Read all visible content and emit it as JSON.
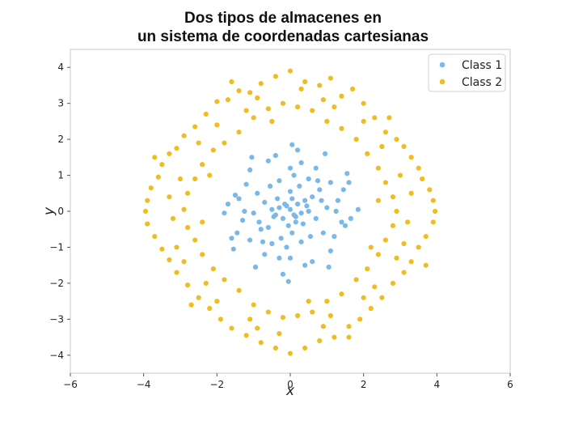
{
  "chart_data": {
    "type": "scatter",
    "title_lines": [
      "Dos tipos de almacenes en",
      "un sistema de coordenadas cartesianas"
    ],
    "xlabel": "x",
    "ylabel": "y",
    "xlim": [
      -6,
      6
    ],
    "ylim": [
      -4.5,
      4.5
    ],
    "xticks": [
      "−6",
      "−4",
      "−2",
      "0",
      "2",
      "4",
      "6"
    ],
    "yticks": [
      "−4",
      "−3",
      "−2",
      "−1",
      "0",
      "1",
      "2",
      "3",
      "4"
    ],
    "grid": false,
    "legend_position": "top-right",
    "series": [
      {
        "name": "Class 1",
        "color": "#7ab8e8",
        "points": [
          [
            0.0,
            0.05
          ],
          [
            0.1,
            -0.1
          ],
          [
            -0.1,
            0.15
          ],
          [
            0.2,
            0.2
          ],
          [
            -0.2,
            -0.2
          ],
          [
            0.15,
            -0.3
          ],
          [
            -0.3,
            0.1
          ],
          [
            0.3,
            -0.05
          ],
          [
            0.05,
            0.35
          ],
          [
            -0.05,
            -0.4
          ],
          [
            0.4,
            0.3
          ],
          [
            -0.4,
            -0.1
          ],
          [
            0.35,
            -0.35
          ],
          [
            -0.35,
            0.35
          ],
          [
            0.5,
            0.0
          ],
          [
            -0.5,
            0.05
          ],
          [
            0.0,
            0.55
          ],
          [
            0.05,
            -0.6
          ],
          [
            0.6,
            0.4
          ],
          [
            -0.6,
            -0.45
          ],
          [
            0.7,
            -0.2
          ],
          [
            -0.7,
            0.25
          ],
          [
            0.25,
            0.7
          ],
          [
            -0.25,
            -0.75
          ],
          [
            0.8,
            0.6
          ],
          [
            -0.8,
            -0.5
          ],
          [
            0.9,
            -0.6
          ],
          [
            -0.9,
            0.5
          ],
          [
            0.5,
            0.9
          ],
          [
            -0.5,
            -0.9
          ],
          [
            1.0,
            0.1
          ],
          [
            -1.0,
            -0.05
          ],
          [
            0.1,
            1.0
          ],
          [
            -0.1,
            -1.0
          ],
          [
            1.1,
            0.8
          ],
          [
            -1.1,
            -0.8
          ],
          [
            1.2,
            -0.7
          ],
          [
            -1.2,
            0.75
          ],
          [
            0.7,
            1.2
          ],
          [
            -0.7,
            -1.2
          ],
          [
            1.3,
            0.3
          ],
          [
            -1.3,
            -0.25
          ],
          [
            0.3,
            1.35
          ],
          [
            -0.3,
            -1.3
          ],
          [
            1.4,
            -0.3
          ],
          [
            -1.4,
            0.35
          ],
          [
            1.6,
            0.8
          ],
          [
            -1.6,
            -0.75
          ],
          [
            0.95,
            1.6
          ],
          [
            -0.95,
            -1.55
          ],
          [
            1.5,
            -0.4
          ],
          [
            -1.5,
            0.45
          ],
          [
            0.4,
            -1.5
          ],
          [
            -0.4,
            1.55
          ],
          [
            1.1,
            -1.1
          ],
          [
            -1.1,
            1.15
          ],
          [
            1.65,
            -0.2
          ],
          [
            -1.7,
            0.2
          ],
          [
            0.2,
            1.7
          ],
          [
            -0.2,
            -1.75
          ],
          [
            0.0,
            1.2
          ],
          [
            0.0,
            -1.3
          ],
          [
            1.25,
            0.0
          ],
          [
            -1.25,
            0.0
          ],
          [
            0.6,
            -1.4
          ],
          [
            -0.6,
            1.4
          ],
          [
            1.45,
            0.6
          ],
          [
            -1.45,
            -0.6
          ],
          [
            0.85,
            0.3
          ],
          [
            -0.85,
            -0.3
          ],
          [
            0.3,
            -0.85
          ],
          [
            -0.3,
            0.85
          ],
          [
            0.45,
            0.15
          ],
          [
            -0.45,
            -0.15
          ],
          [
            0.15,
            -0.15
          ],
          [
            -0.15,
            0.2
          ],
          [
            0.55,
            -0.7
          ],
          [
            -0.55,
            0.7
          ],
          [
            0.75,
            0.85
          ],
          [
            -0.75,
            -0.85
          ],
          [
            1.05,
            -1.55
          ],
          [
            -1.05,
            1.5
          ],
          [
            1.55,
            1.05
          ],
          [
            -1.55,
            -1.05
          ],
          [
            0.05,
            1.85
          ],
          [
            -0.05,
            -1.95
          ],
          [
            1.85,
            0.05
          ],
          [
            -1.8,
            -0.05
          ]
        ]
      },
      {
        "name": "Class 2",
        "color": "#efbd21",
        "points": [
          [
            0.0,
            3.9
          ],
          [
            0.4,
            3.6
          ],
          [
            -0.4,
            3.75
          ],
          [
            0.8,
            3.5
          ],
          [
            -0.8,
            3.55
          ],
          [
            1.1,
            3.7
          ],
          [
            -1.1,
            3.3
          ],
          [
            1.4,
            3.2
          ],
          [
            -1.4,
            3.35
          ],
          [
            1.7,
            3.4
          ],
          [
            -1.7,
            3.1
          ],
          [
            2.0,
            3.0
          ],
          [
            -2.0,
            3.05
          ],
          [
            2.3,
            2.6
          ],
          [
            -2.3,
            2.7
          ],
          [
            2.6,
            2.2
          ],
          [
            -2.6,
            2.35
          ],
          [
            2.9,
            2.0
          ],
          [
            -2.9,
            2.1
          ],
          [
            3.1,
            1.8
          ],
          [
            -3.1,
            1.75
          ],
          [
            3.3,
            1.5
          ],
          [
            -3.3,
            1.6
          ],
          [
            3.5,
            1.2
          ],
          [
            -3.5,
            1.3
          ],
          [
            3.6,
            0.9
          ],
          [
            -3.6,
            0.95
          ],
          [
            3.8,
            0.6
          ],
          [
            -3.8,
            0.65
          ],
          [
            3.9,
            0.3
          ],
          [
            -3.9,
            0.3
          ],
          [
            3.95,
            0.0
          ],
          [
            -3.95,
            0.0
          ],
          [
            3.9,
            -0.3
          ],
          [
            -3.9,
            -0.35
          ],
          [
            3.7,
            -0.7
          ],
          [
            -3.7,
            -0.7
          ],
          [
            3.5,
            -1.0
          ],
          [
            -3.5,
            -1.05
          ],
          [
            3.3,
            -1.4
          ],
          [
            -3.3,
            -1.35
          ],
          [
            3.1,
            -1.7
          ],
          [
            -3.1,
            -1.7
          ],
          [
            2.8,
            -2.0
          ],
          [
            -2.8,
            -2.05
          ],
          [
            2.5,
            -2.4
          ],
          [
            -2.5,
            -2.4
          ],
          [
            2.2,
            -2.7
          ],
          [
            -2.2,
            -2.7
          ],
          [
            1.9,
            -3.0
          ],
          [
            -1.9,
            -3.0
          ],
          [
            1.6,
            -3.2
          ],
          [
            -1.6,
            -3.25
          ],
          [
            1.2,
            -3.5
          ],
          [
            -1.2,
            -3.45
          ],
          [
            0.8,
            -3.6
          ],
          [
            -0.8,
            -3.65
          ],
          [
            0.4,
            -3.8
          ],
          [
            -0.4,
            -3.8
          ],
          [
            0.0,
            -3.95
          ],
          [
            0.2,
            2.9
          ],
          [
            -0.2,
            3.0
          ],
          [
            0.6,
            2.8
          ],
          [
            -0.6,
            2.85
          ],
          [
            1.0,
            2.5
          ],
          [
            -1.0,
            2.6
          ],
          [
            1.4,
            2.3
          ],
          [
            -1.4,
            2.2
          ],
          [
            1.8,
            2.0
          ],
          [
            -1.8,
            1.9
          ],
          [
            2.1,
            1.6
          ],
          [
            -2.1,
            1.7
          ],
          [
            2.4,
            1.2
          ],
          [
            -2.4,
            1.3
          ],
          [
            2.6,
            0.8
          ],
          [
            -2.6,
            0.9
          ],
          [
            2.8,
            0.4
          ],
          [
            -2.8,
            0.5
          ],
          [
            2.9,
            0.0
          ],
          [
            -2.9,
            0.05
          ],
          [
            2.8,
            -0.4
          ],
          [
            -2.8,
            -0.45
          ],
          [
            2.6,
            -0.8
          ],
          [
            -2.6,
            -0.8
          ],
          [
            2.4,
            -1.2
          ],
          [
            -2.4,
            -1.2
          ],
          [
            2.1,
            -1.6
          ],
          [
            -2.1,
            -1.6
          ],
          [
            1.8,
            -1.9
          ],
          [
            -1.8,
            -1.9
          ],
          [
            1.4,
            -2.3
          ],
          [
            -1.4,
            -2.2
          ],
          [
            1.0,
            -2.5
          ],
          [
            -1.0,
            -2.6
          ],
          [
            0.6,
            -2.8
          ],
          [
            -0.6,
            -2.8
          ],
          [
            0.2,
            -2.9
          ],
          [
            -0.2,
            -2.95
          ],
          [
            0.9,
            3.1
          ],
          [
            -0.9,
            3.15
          ],
          [
            2.0,
            2.5
          ],
          [
            -2.0,
            2.4
          ],
          [
            3.0,
            1.0
          ],
          [
            -3.0,
            0.9
          ],
          [
            3.2,
            -0.3
          ],
          [
            -3.2,
            -0.2
          ],
          [
            2.9,
            -1.3
          ],
          [
            -2.9,
            -1.4
          ],
          [
            2.0,
            -2.4
          ],
          [
            -2.0,
            -2.5
          ],
          [
            0.9,
            -3.2
          ],
          [
            -0.9,
            -3.25
          ],
          [
            1.2,
            2.9
          ],
          [
            -1.2,
            2.8
          ],
          [
            2.5,
            1.8
          ],
          [
            -2.5,
            1.9
          ],
          [
            3.3,
            0.5
          ],
          [
            -3.3,
            0.4
          ],
          [
            3.1,
            -0.9
          ],
          [
            -3.1,
            -1.0
          ],
          [
            2.3,
            -2.1
          ],
          [
            -2.3,
            -2.0
          ],
          [
            1.1,
            -2.9
          ],
          [
            -1.1,
            -3.0
          ],
          [
            0.3,
            3.4
          ],
          [
            -0.3,
            -3.4
          ],
          [
            2.7,
            2.6
          ],
          [
            -2.7,
            -2.6
          ],
          [
            3.7,
            -1.5
          ],
          [
            -3.7,
            1.5
          ],
          [
            1.6,
            -3.5
          ],
          [
            -1.6,
            3.6
          ],
          [
            0.5,
            -2.5
          ],
          [
            -0.5,
            2.5
          ],
          [
            2.2,
            -1.0
          ],
          [
            -2.2,
            1.0
          ],
          [
            2.4,
            0.3
          ],
          [
            -2.4,
            -0.3
          ]
        ]
      }
    ]
  }
}
